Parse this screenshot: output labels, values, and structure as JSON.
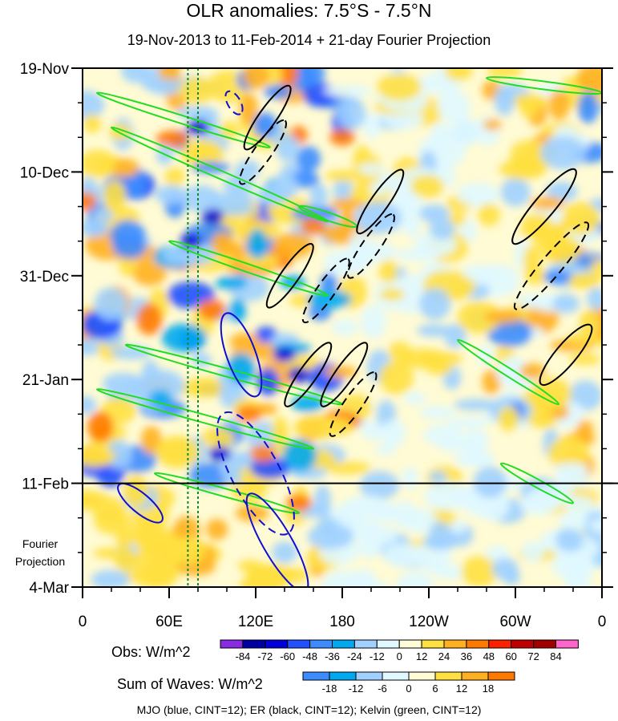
{
  "title": "OLR anomalies: 7.5°S - 7.5°N",
  "subtitle": "19-Nov-2013 to 11-Feb-2014 + 21-day Fourier Projection",
  "projection_label": [
    "Fourier",
    "Projection"
  ],
  "footer": "MJO (blue, CINT=12); ER (black, CINT=12); Kelvin (green, CINT=12)",
  "chart_data": {
    "type": "heatmap",
    "title": "OLR anomalies: 7.5°S - 7.5°N",
    "subtitle": "19-Nov-2013 to 11-Feb-2014 + 21-day Fourier Projection",
    "x_ticks": [
      {
        "lon": 0,
        "label": "0"
      },
      {
        "lon": 60,
        "label": "60E"
      },
      {
        "lon": 120,
        "label": "120E"
      },
      {
        "lon": 180,
        "label": "180"
      },
      {
        "lon": 240,
        "label": "120W"
      },
      {
        "lon": 300,
        "label": "60W"
      },
      {
        "lon": 360,
        "label": "0"
      }
    ],
    "y_ticks": [
      {
        "day": 0,
        "label": "19-Nov"
      },
      {
        "day": 21,
        "label": "10-Dec"
      },
      {
        "day": 42,
        "label": "31-Dec"
      },
      {
        "day": 63,
        "label": "21-Jan"
      },
      {
        "day": 84,
        "label": "11-Feb"
      },
      {
        "day": 105,
        "label": "4-Mar"
      }
    ],
    "xlim": [
      0,
      360
    ],
    "ylim_days": [
      0,
      105
    ],
    "projection_start_day": 84,
    "reference_lons": [
      73,
      80
    ],
    "obs_legend": {
      "label": "Obs: W/m^2",
      "levels": [
        -84,
        -72,
        -60,
        -48,
        -36,
        -24,
        -12,
        0,
        12,
        24,
        36,
        48,
        60,
        72,
        84
      ],
      "colors": [
        "#8a2be2",
        "#0000a0",
        "#0000d8",
        "#2050ff",
        "#3c8cff",
        "#00a8f0",
        "#a0d0ff",
        "#e0f8ff",
        "#fffbd4",
        "#ffe040",
        "#ffb020",
        "#ff7800",
        "#ff2000",
        "#c00000",
        "#a00000",
        "#ff66cc"
      ]
    },
    "waves_legend": {
      "label": "Sum of Waves: W/m^2",
      "levels": [
        -18,
        -12,
        -6,
        0,
        6,
        12,
        18
      ],
      "colors": [
        "#3c8cff",
        "#00a8f0",
        "#a0d0ff",
        "#e0f8ff",
        "#fffbd4",
        "#ffe040",
        "#ffb020",
        "#ff7800"
      ]
    },
    "contours": [
      {
        "wave": "MJO",
        "color": "#1010d0",
        "cint": 12
      },
      {
        "wave": "ER",
        "color": "#000000",
        "cint": 12
      },
      {
        "wave": "Kelvin",
        "color": "#22dd22",
        "cint": 12
      }
    ]
  }
}
